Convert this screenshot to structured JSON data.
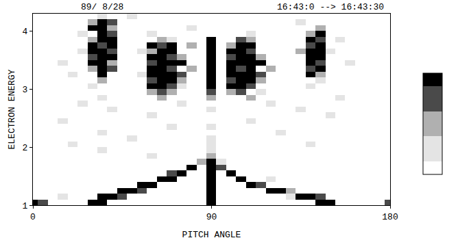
{
  "chart_data": {
    "type": "heatmap",
    "annotations": [
      "89/ 8/28",
      "16:43:0 --> 16:43:30"
    ],
    "xlabel": "PITCH ANGLE",
    "ylabel": "ELECTRON ENERGY",
    "xlim": [
      0,
      180
    ],
    "xticks": [
      0,
      90,
      180
    ],
    "ylim": [
      1,
      4.3
    ],
    "yticks": [
      1,
      2,
      3,
      4
    ],
    "grid": false,
    "x": [
      0,
      5,
      10,
      15,
      20,
      25,
      30,
      35,
      40,
      45,
      50,
      55,
      60,
      65,
      70,
      75,
      80,
      85,
      90,
      95,
      100,
      105,
      110,
      115,
      120,
      125,
      130,
      135,
      140,
      145,
      150,
      155,
      160,
      165,
      170,
      175,
      180
    ],
    "y": [
      1.05,
      1.15,
      1.25,
      1.35,
      1.45,
      1.55,
      1.65,
      1.75,
      1.85,
      1.95,
      2.05,
      2.15,
      2.25,
      2.35,
      2.45,
      2.55,
      2.65,
      2.75,
      2.85,
      2.95,
      3.05,
      3.15,
      3.25,
      3.35,
      3.45,
      3.55,
      3.65,
      3.75,
      3.85,
      3.95,
      4.05,
      4.15,
      4.25
    ],
    "z": [
      [
        4,
        3,
        0,
        0,
        0,
        0,
        4,
        4,
        0,
        0,
        0,
        0,
        0,
        0,
        0,
        0,
        0,
        0,
        4,
        0,
        0,
        0,
        0,
        0,
        0,
        0,
        0,
        0,
        0,
        4,
        4,
        0,
        0,
        0,
        0,
        0,
        3
      ],
      [
        0,
        0,
        0,
        1,
        0,
        0,
        0,
        4,
        4,
        3,
        0,
        0,
        0,
        0,
        0,
        0,
        0,
        0,
        4,
        0,
        0,
        0,
        0,
        0,
        0,
        0,
        1,
        4,
        4,
        3,
        0,
        0,
        0,
        0,
        0,
        0,
        0
      ],
      [
        0,
        0,
        0,
        0,
        0,
        0,
        0,
        0,
        0,
        4,
        4,
        3,
        0,
        0,
        0,
        0,
        0,
        0,
        4,
        0,
        0,
        0,
        0,
        0,
        4,
        4,
        2,
        0,
        0,
        0,
        0,
        0,
        0,
        0,
        0,
        0,
        0
      ],
      [
        0,
        0,
        0,
        0,
        0,
        0,
        0,
        0,
        0,
        0,
        0,
        4,
        4,
        0,
        0,
        0,
        0,
        0,
        4,
        0,
        0,
        0,
        4,
        3,
        0,
        0,
        0,
        0,
        0,
        0,
        0,
        0,
        0,
        0,
        0,
        0,
        0
      ],
      [
        0,
        0,
        0,
        0,
        0,
        0,
        0,
        0,
        0,
        0,
        0,
        0,
        0,
        4,
        4,
        0,
        0,
        0,
        4,
        0,
        0,
        4,
        0,
        0,
        1,
        0,
        0,
        0,
        0,
        0,
        0,
        0,
        0,
        0,
        0,
        0,
        0
      ],
      [
        0,
        0,
        0,
        0,
        0,
        0,
        0,
        0,
        0,
        0,
        0,
        0,
        0,
        0,
        3,
        4,
        0,
        0,
        4,
        0,
        4,
        0,
        0,
        0,
        0,
        0,
        0,
        0,
        0,
        0,
        0,
        0,
        0,
        0,
        0,
        0,
        0
      ],
      [
        0,
        0,
        0,
        0,
        0,
        0,
        0,
        0,
        0,
        0,
        0,
        0,
        0,
        0,
        0,
        0,
        4,
        0,
        4,
        3,
        0,
        0,
        0,
        0,
        0,
        0,
        0,
        0,
        0,
        0,
        0,
        0,
        0,
        0,
        0,
        0,
        0
      ],
      [
        0,
        0,
        0,
        0,
        0,
        0,
        0,
        0,
        0,
        0,
        0,
        0,
        0,
        0,
        0,
        0,
        0,
        2,
        4,
        1,
        0,
        0,
        0,
        0,
        0,
        0,
        0,
        0,
        0,
        0,
        0,
        0,
        0,
        0,
        0,
        0,
        0
      ],
      [
        0,
        0,
        0,
        0,
        0,
        0,
        0,
        0,
        0,
        0,
        0,
        0,
        1,
        0,
        0,
        0,
        0,
        0,
        2,
        0,
        0,
        0,
        0,
        0,
        0,
        0,
        0,
        0,
        0,
        0,
        0,
        0,
        0,
        0,
        0,
        0,
        0
      ],
      [
        0,
        0,
        0,
        0,
        0,
        0,
        0,
        1,
        0,
        0,
        0,
        0,
        0,
        0,
        0,
        0,
        0,
        0,
        1,
        0,
        0,
        0,
        0,
        0,
        0,
        0,
        0,
        0,
        0,
        0,
        0,
        0,
        0,
        0,
        0,
        0,
        0
      ],
      [
        0,
        0,
        0,
        0,
        1,
        0,
        0,
        0,
        0,
        0,
        0,
        0,
        0,
        0,
        0,
        0,
        0,
        0,
        1,
        0,
        0,
        0,
        0,
        0,
        0,
        0,
        0,
        0,
        1,
        0,
        0,
        0,
        0,
        0,
        0,
        0,
        0
      ],
      [
        0,
        0,
        0,
        0,
        0,
        0,
        0,
        0,
        0,
        0,
        1,
        0,
        0,
        0,
        0,
        0,
        0,
        0,
        1,
        0,
        0,
        0,
        0,
        0,
        0,
        0,
        0,
        0,
        0,
        0,
        0,
        0,
        0,
        0,
        0,
        0,
        0
      ],
      [
        0,
        0,
        0,
        0,
        0,
        0,
        0,
        1,
        0,
        0,
        0,
        0,
        0,
        0,
        0,
        0,
        0,
        0,
        0,
        0,
        0,
        0,
        0,
        0,
        0,
        1,
        0,
        0,
        0,
        0,
        0,
        0,
        0,
        0,
        0,
        0,
        0
      ],
      [
        0,
        0,
        0,
        0,
        0,
        0,
        0,
        0,
        0,
        0,
        0,
        0,
        0,
        0,
        1,
        0,
        0,
        0,
        1,
        0,
        0,
        0,
        0,
        0,
        0,
        0,
        0,
        0,
        0,
        0,
        0,
        0,
        0,
        0,
        0,
        0,
        0
      ],
      [
        0,
        0,
        0,
        1,
        0,
        0,
        0,
        0,
        0,
        0,
        0,
        0,
        0,
        0,
        0,
        0,
        0,
        0,
        0,
        0,
        0,
        0,
        1,
        0,
        0,
        0,
        0,
        0,
        0,
        0,
        0,
        0,
        0,
        0,
        0,
        0,
        0
      ],
      [
        0,
        0,
        0,
        0,
        0,
        0,
        0,
        0,
        0,
        0,
        0,
        0,
        1,
        0,
        0,
        0,
        0,
        0,
        0,
        0,
        0,
        0,
        0,
        0,
        0,
        0,
        0,
        0,
        0,
        0,
        1,
        0,
        0,
        0,
        0,
        0,
        0
      ],
      [
        0,
        0,
        0,
        0,
        0,
        0,
        0,
        0,
        1,
        0,
        0,
        0,
        0,
        0,
        0,
        0,
        0,
        0,
        1,
        0,
        0,
        0,
        0,
        0,
        0,
        0,
        0,
        1,
        0,
        0,
        0,
        0,
        0,
        0,
        0,
        0,
        0
      ],
      [
        0,
        0,
        0,
        0,
        0,
        1,
        0,
        0,
        0,
        0,
        0,
        0,
        0,
        0,
        0,
        1,
        0,
        0,
        0,
        0,
        0,
        0,
        0,
        0,
        1,
        0,
        0,
        0,
        0,
        0,
        0,
        0,
        0,
        0,
        0,
        0,
        0
      ],
      [
        0,
        0,
        0,
        0,
        0,
        0,
        0,
        1,
        0,
        0,
        0,
        0,
        0,
        2,
        0,
        0,
        0,
        0,
        2,
        0,
        0,
        0,
        2,
        0,
        0,
        0,
        0,
        0,
        0,
        0,
        0,
        1,
        0,
        0,
        0,
        0,
        0
      ],
      [
        0,
        0,
        0,
        0,
        0,
        0,
        0,
        0,
        0,
        0,
        0,
        0,
        2,
        3,
        2,
        0,
        0,
        0,
        3,
        0,
        2,
        3,
        0,
        1,
        0,
        0,
        0,
        0,
        0,
        0,
        0,
        0,
        0,
        0,
        0,
        0,
        0
      ],
      [
        0,
        0,
        0,
        0,
        0,
        0,
        1,
        0,
        0,
        0,
        0,
        0,
        4,
        4,
        3,
        1,
        0,
        0,
        4,
        0,
        4,
        4,
        3,
        0,
        0,
        0,
        0,
        0,
        1,
        0,
        0,
        0,
        0,
        0,
        0,
        0,
        0
      ],
      [
        0,
        0,
        0,
        0,
        0,
        0,
        0,
        2,
        0,
        0,
        0,
        0,
        3,
        4,
        4,
        2,
        0,
        0,
        4,
        0,
        3,
        4,
        4,
        2,
        0,
        0,
        0,
        0,
        0,
        1,
        0,
        0,
        0,
        0,
        0,
        0,
        0
      ],
      [
        0,
        0,
        0,
        0,
        1,
        0,
        0,
        4,
        0,
        0,
        0,
        1,
        4,
        4,
        4,
        3,
        0,
        0,
        4,
        0,
        4,
        4,
        4,
        3,
        0,
        0,
        0,
        0,
        4,
        2,
        0,
        0,
        0,
        0,
        0,
        0,
        0
      ],
      [
        0,
        0,
        0,
        0,
        0,
        0,
        2,
        4,
        3,
        0,
        0,
        0,
        4,
        4,
        3,
        0,
        2,
        0,
        4,
        0,
        4,
        3,
        4,
        0,
        2,
        0,
        0,
        0,
        3,
        4,
        0,
        0,
        0,
        0,
        0,
        0,
        0
      ],
      [
        0,
        0,
        0,
        1,
        0,
        0,
        4,
        4,
        2,
        0,
        0,
        0,
        3,
        4,
        4,
        4,
        0,
        0,
        4,
        0,
        4,
        4,
        4,
        4,
        0,
        0,
        0,
        0,
        4,
        3,
        0,
        0,
        1,
        0,
        0,
        0,
        0
      ],
      [
        0,
        0,
        0,
        0,
        0,
        0,
        3,
        4,
        4,
        0,
        0,
        0,
        4,
        4,
        3,
        2,
        0,
        0,
        4,
        0,
        3,
        4,
        4,
        2,
        0,
        0,
        0,
        0,
        4,
        4,
        0,
        0,
        0,
        0,
        0,
        0,
        0
      ],
      [
        0,
        0,
        0,
        0,
        0,
        1,
        4,
        4,
        3,
        0,
        0,
        1,
        2,
        4,
        4,
        0,
        0,
        0,
        4,
        0,
        4,
        4,
        3,
        0,
        0,
        0,
        0,
        2,
        4,
        4,
        1,
        0,
        0,
        0,
        0,
        0,
        0
      ],
      [
        0,
        0,
        0,
        0,
        0,
        0,
        4,
        3,
        4,
        0,
        0,
        0,
        4,
        3,
        4,
        0,
        2,
        0,
        4,
        0,
        2,
        4,
        4,
        0,
        0,
        0,
        0,
        0,
        3,
        4,
        0,
        0,
        0,
        0,
        0,
        0,
        0
      ],
      [
        0,
        0,
        0,
        0,
        0,
        0,
        2,
        4,
        4,
        0,
        0,
        0,
        0,
        2,
        1,
        0,
        0,
        0,
        4,
        0,
        0,
        3,
        2,
        0,
        0,
        0,
        0,
        0,
        4,
        3,
        0,
        1,
        0,
        0,
        0,
        0,
        0
      ],
      [
        0,
        0,
        0,
        0,
        0,
        1,
        0,
        4,
        3,
        0,
        0,
        0,
        1,
        0,
        0,
        0,
        0,
        0,
        0,
        0,
        0,
        0,
        1,
        0,
        0,
        0,
        0,
        0,
        2,
        4,
        0,
        0,
        0,
        0,
        0,
        0,
        0
      ],
      [
        0,
        0,
        0,
        0,
        0,
        0,
        4,
        4,
        2,
        0,
        0,
        0,
        0,
        0,
        0,
        0,
        1,
        0,
        0,
        0,
        0,
        0,
        0,
        0,
        0,
        0,
        0,
        0,
        0,
        2,
        0,
        0,
        0,
        0,
        0,
        0,
        0
      ],
      [
        0,
        0,
        0,
        0,
        0,
        0,
        2,
        4,
        3,
        0,
        0,
        0,
        0,
        0,
        0,
        0,
        0,
        0,
        0,
        0,
        0,
        0,
        0,
        0,
        0,
        0,
        0,
        1,
        0,
        0,
        0,
        0,
        0,
        0,
        0,
        0,
        0
      ],
      [
        0,
        0,
        0,
        0,
        0,
        0,
        0,
        1,
        0,
        0,
        1,
        0,
        0,
        0,
        0,
        0,
        0,
        0,
        0,
        0,
        0,
        0,
        0,
        0,
        0,
        0,
        0,
        0,
        0,
        0,
        0,
        0,
        0,
        0,
        0,
        0,
        0
      ]
    ],
    "colorbar": {
      "zlim": [
        0,
        4
      ],
      "colors": [
        "#ffffff",
        "#e4e4e4",
        "#b0b0b0",
        "#4a4a4a",
        "#000000"
      ]
    }
  }
}
